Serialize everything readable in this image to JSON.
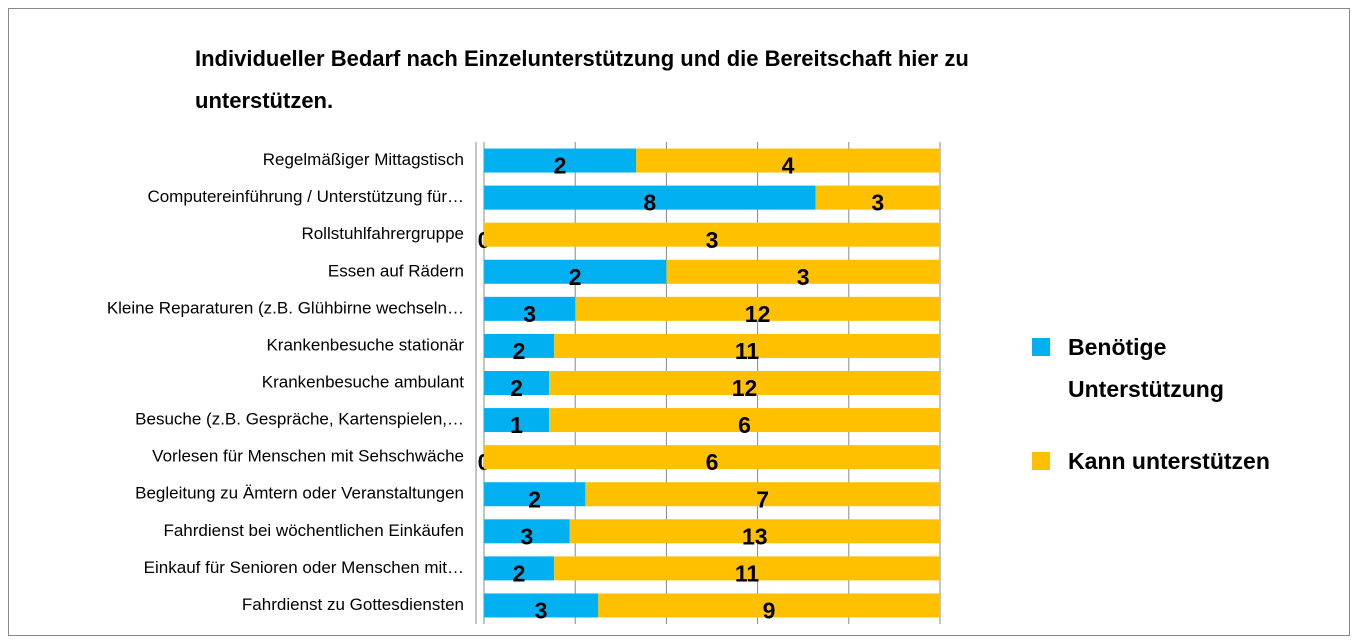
{
  "chart_data": {
    "type": "bar",
    "orientation": "horizontal",
    "stacking": "percent",
    "title": "Individueller Bedarf nach Einzelunterstützung und die Bereitschaft hier zu unterstützen.",
    "categories": [
      "Regelmäßiger Mittagstisch",
      "Computereinführung / Unterstützung für…",
      "Rollstuhlfahrergruppe",
      "Essen auf Rädern",
      "Kleine Reparaturen (z.B. Glühbirne wechseln…",
      "Krankenbesuche stationär",
      "Krankenbesuche ambulant",
      "Besuche (z.B. Gespräche, Kartenspielen,…",
      "Vorlesen für Menschen mit Sehschwäche",
      "Begleitung zu Ämtern oder Veranstaltungen",
      "Fahrdienst bei wöchentlichen Einkäufen",
      "Einkauf für Senioren oder Menschen mit…",
      "Fahrdienst zu Gottesdiensten"
    ],
    "series": [
      {
        "name": "Benötige Unterstützung",
        "color": "#00b0f0",
        "values": [
          2,
          8,
          0,
          2,
          3,
          2,
          2,
          1,
          0,
          2,
          3,
          2,
          3
        ]
      },
      {
        "name": "Kann unterstützen",
        "color": "#ffc000",
        "values": [
          4,
          3,
          3,
          3,
          12,
          11,
          12,
          6,
          6,
          7,
          13,
          11,
          9
        ]
      }
    ],
    "xlim": [
      0,
      100
    ],
    "xticks": [
      0,
      20,
      40,
      60,
      80,
      100
    ],
    "grid": true,
    "legend": "right"
  }
}
